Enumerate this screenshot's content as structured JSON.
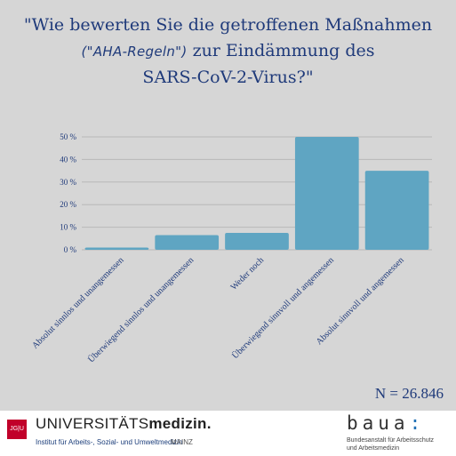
{
  "title": {
    "line1": "\"Wie bewerten Sie die getroffenen Maßnahmen",
    "highlight": "(\"AHA-Regeln\")",
    "line2_rest": "zur Eindämmung des",
    "line3": "SARS-CoV-2-Virus?\""
  },
  "sample_size": "N = 26.846",
  "colors": {
    "bar": "#5fa5c2",
    "grid": "#b8b8b8",
    "text": "#1f3a7a"
  },
  "chart_data": {
    "type": "bar",
    "categories": [
      "Absolut sinnlos und unangemessen",
      "Überwiegend sinnlos und unangemessen",
      "Weder noch",
      "Überwiegend sinnvoll und angemessen",
      "Absolut sinnvoll und angemessen"
    ],
    "values": [
      1,
      6.5,
      7.5,
      50,
      35
    ],
    "yticks": [
      "0 %",
      "10 %",
      "20 %",
      "30 %",
      "40 %",
      "50 %"
    ],
    "ylim": [
      0,
      50
    ],
    "grid": true
  },
  "footer": {
    "jgu_logo": "JG|U",
    "uni_prefix": "UNIVERSITÄTS",
    "uni_bold": "medizin.",
    "institute": "Institut für Arbeits-, Sozial- und Umweltmedizin",
    "mainz": "MAINZ",
    "baua_word": "baua",
    "baua_colon": ":",
    "baua_sub1": "Bundesanstalt für Arbeitsschutz",
    "baua_sub2": "und Arbeitsmedizin"
  }
}
